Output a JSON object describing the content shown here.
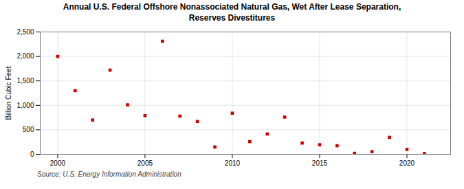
{
  "chart_data": {
    "type": "scatter",
    "title": "Annual U.S. Federal Offshore Nonassociated Natural Gas, Wet After Lease Separation,\nReserves Divestitures",
    "ylabel": "Billion Cubic Feet",
    "source": "Source: U.S. Energy Information Administration",
    "x": [
      2000,
      2001,
      2002,
      2003,
      2004,
      2005,
      2006,
      2007,
      2008,
      2009,
      2010,
      2011,
      2012,
      2013,
      2014,
      2015,
      2016,
      2017,
      2018,
      2019,
      2020,
      2021
    ],
    "values": [
      2000,
      1300,
      700,
      1720,
      1010,
      790,
      2310,
      780,
      670,
      150,
      840,
      260,
      415,
      760,
      230,
      195,
      175,
      20,
      55,
      345,
      100,
      15
    ],
    "color": "#cc0000",
    "marker": "square",
    "xlim": [
      1999,
      2022.5
    ],
    "xticks": [
      2000,
      2005,
      2010,
      2015,
      2020
    ],
    "ylim": [
      0,
      2500
    ],
    "yticks": [
      0,
      500,
      {
        "value": 1000,
        "label": "1,000"
      },
      {
        "value": 1500,
        "label": "1,500"
      },
      {
        "value": 2000,
        "label": "2,000"
      },
      {
        "value": 2500,
        "label": "2,500"
      }
    ],
    "grid": true
  }
}
